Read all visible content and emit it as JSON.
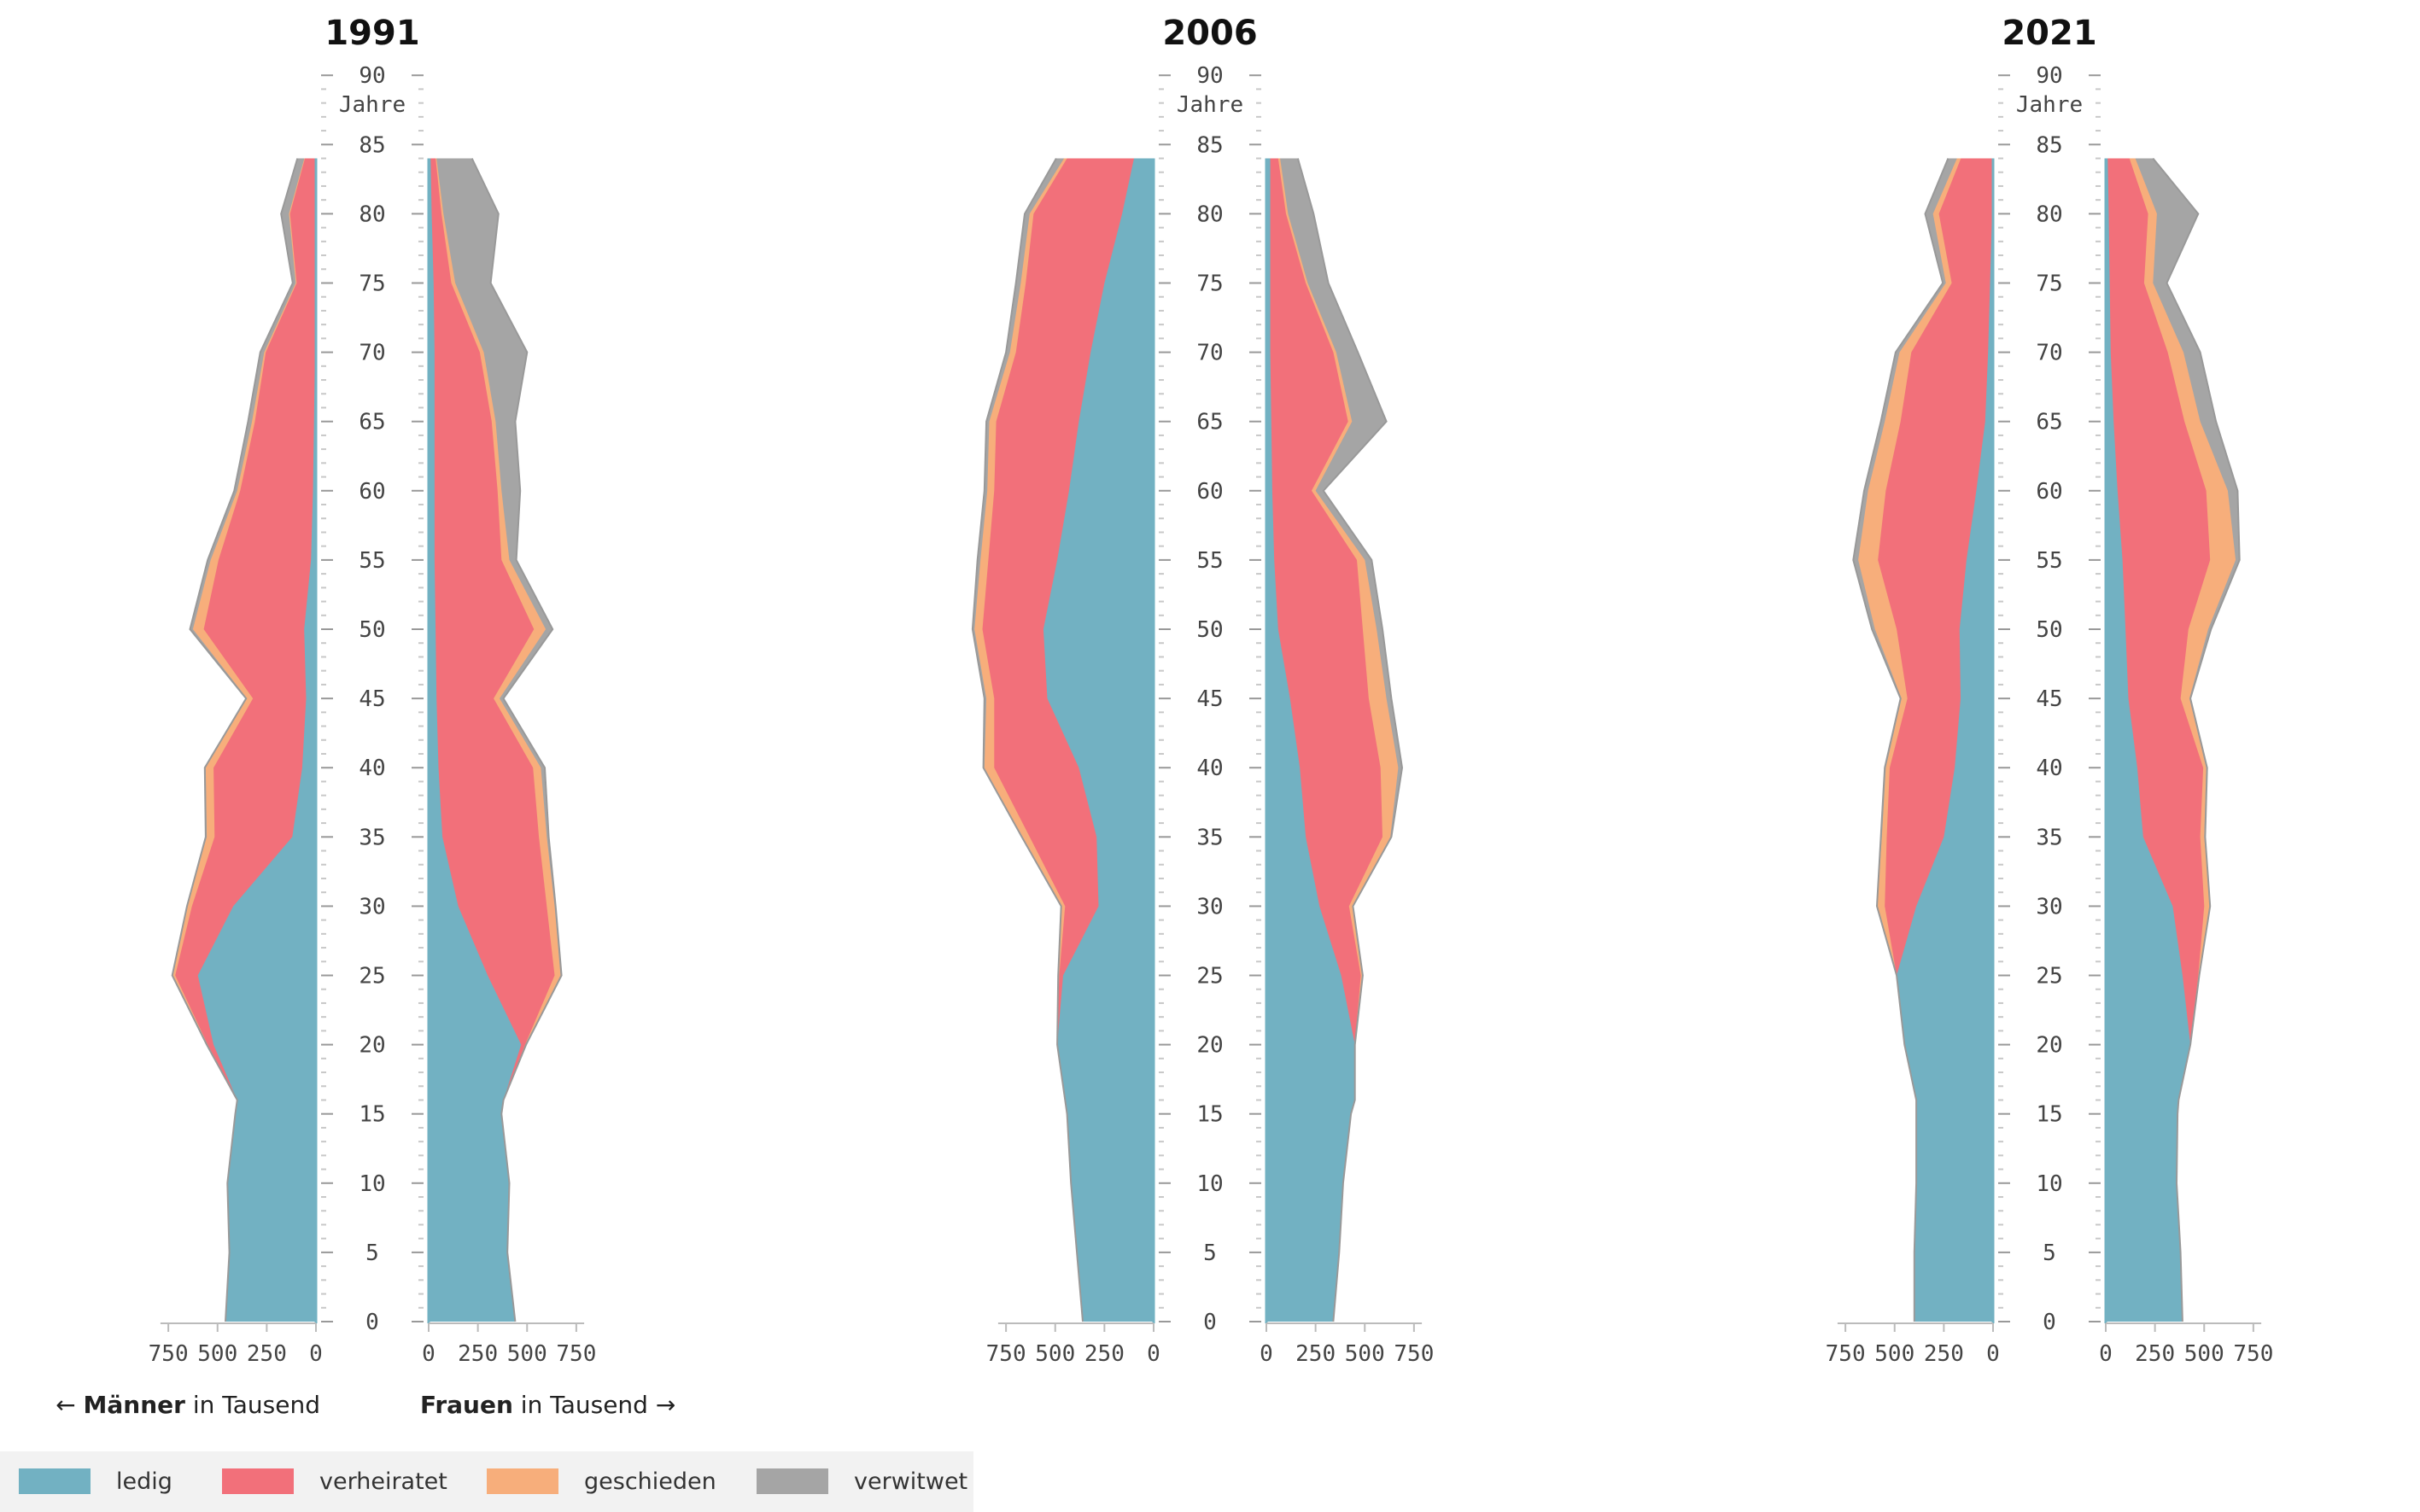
{
  "chart_data": {
    "type": "area",
    "y_axis": {
      "unit_label": "Jahre",
      "range": [
        0,
        90
      ],
      "ticks": [
        "0",
        "5",
        "10",
        "15",
        "20",
        "25",
        "30",
        "35",
        "40",
        "45",
        "50",
        "55",
        "60",
        "65",
        "70",
        "75",
        "80",
        "85",
        "90"
      ]
    },
    "x_axis": {
      "range": [
        0,
        750
      ],
      "ticks": [
        "0",
        "250",
        "500",
        "750"
      ],
      "left_caption_arrow": "←",
      "left_caption_strong": "Männer",
      "left_caption_rest": " in Tausend",
      "right_caption_strong": "Frauen",
      "right_caption_rest": " in Tausend",
      "right_caption_arrow": "→"
    },
    "legend": [
      {
        "key": "ledig",
        "label": "ledig",
        "color": "#72b1c2"
      },
      {
        "key": "verheiratet",
        "label": "verheiratet",
        "color": "#f2707a"
      },
      {
        "key": "geschieden",
        "label": "geschieden",
        "color": "#f7ae7b"
      },
      {
        "key": "verwitwet",
        "label": "verwitwet",
        "color": "#a5a5a5"
      }
    ],
    "ages": [
      0,
      5,
      10,
      15,
      16,
      20,
      25,
      30,
      35,
      40,
      45,
      50,
      55,
      60,
      65,
      70,
      75,
      80,
      84
    ],
    "panels": [
      {
        "year": "1991",
        "men": {
          "ledig": [
            460,
            440,
            450,
            410,
            400,
            520,
            600,
            420,
            120,
            70,
            50,
            60,
            25,
            15,
            10,
            5,
            3,
            2,
            1
          ],
          "verheiratet": [
            0,
            0,
            0,
            0,
            0,
            30,
            115,
            210,
            395,
            450,
            270,
            510,
            470,
            370,
            300,
            250,
            95,
            130,
            55
          ],
          "geschieden": [
            0,
            0,
            0,
            0,
            0,
            5,
            15,
            25,
            40,
            40,
            30,
            55,
            40,
            15,
            15,
            8,
            5,
            5,
            3
          ],
          "verwitwet": [
            0,
            0,
            0,
            0,
            0,
            0,
            0,
            0,
            5,
            5,
            5,
            15,
            15,
            15,
            20,
            20,
            15,
            40,
            35
          ]
        },
        "women": {
          "ledig": [
            440,
            400,
            410,
            370,
            380,
            470,
            300,
            150,
            70,
            50,
            40,
            35,
            30,
            30,
            30,
            30,
            25,
            15,
            10
          ],
          "verheiratet": [
            0,
            0,
            0,
            0,
            0,
            20,
            340,
            450,
            490,
            480,
            290,
            500,
            340,
            320,
            290,
            230,
            90,
            50,
            25
          ],
          "geschieden": [
            0,
            0,
            0,
            0,
            0,
            5,
            30,
            40,
            40,
            40,
            30,
            60,
            40,
            20,
            20,
            20,
            20,
            10,
            5
          ],
          "verwitwet": [
            0,
            0,
            0,
            0,
            0,
            0,
            5,
            5,
            10,
            20,
            20,
            35,
            35,
            95,
            100,
            220,
            180,
            280,
            180
          ]
        }
      },
      {
        "year": "2006",
        "men": {
          "ledig": [
            360,
            390,
            420,
            440,
            450,
            490,
            460,
            280,
            290,
            380,
            540,
            560,
            490,
            430,
            380,
            320,
            250,
            160,
            100
          ],
          "verheiratet": [
            0,
            0,
            0,
            0,
            0,
            0,
            20,
            170,
            340,
            430,
            270,
            310,
            350,
            380,
            420,
            380,
            400,
            450,
            340
          ],
          "geschieden": [
            0,
            0,
            0,
            0,
            0,
            0,
            5,
            20,
            40,
            50,
            40,
            40,
            40,
            35,
            35,
            30,
            25,
            20,
            15
          ],
          "verwitwet": [
            0,
            0,
            0,
            0,
            0,
            0,
            0,
            0,
            0,
            5,
            10,
            10,
            15,
            15,
            15,
            20,
            25,
            25,
            40
          ]
        },
        "women": {
          "ledig": [
            340,
            370,
            390,
            430,
            450,
            450,
            380,
            270,
            200,
            170,
            120,
            60,
            40,
            30,
            25,
            20,
            20,
            20,
            20
          ],
          "verheiratet": [
            0,
            0,
            0,
            0,
            0,
            0,
            100,
            150,
            390,
            410,
            400,
            430,
            420,
            200,
            390,
            320,
            180,
            80,
            40
          ],
          "geschieden": [
            0,
            0,
            0,
            0,
            0,
            0,
            10,
            20,
            40,
            90,
            90,
            70,
            40,
            20,
            20,
            15,
            10,
            10,
            10
          ],
          "verwitwet": [
            0,
            0,
            0,
            0,
            0,
            0,
            0,
            0,
            5,
            20,
            25,
            30,
            35,
            40,
            175,
            110,
            105,
            130,
            90
          ]
        }
      },
      {
        "year": "2021",
        "men": {
          "ledig": [
            400,
            400,
            390,
            390,
            390,
            450,
            490,
            390,
            250,
            195,
            165,
            170,
            135,
            85,
            40,
            25,
            15,
            5,
            3
          ],
          "verheiratet": [
            0,
            0,
            0,
            0,
            0,
            0,
            0,
            160,
            290,
            330,
            270,
            320,
            450,
            460,
            430,
            390,
            195,
            270,
            160
          ],
          "geschieden": [
            0,
            0,
            0,
            0,
            0,
            0,
            0,
            40,
            25,
            20,
            30,
            110,
            100,
            90,
            80,
            60,
            30,
            30,
            20
          ],
          "verwitwet": [
            0,
            0,
            0,
            0,
            0,
            0,
            0,
            0,
            5,
            5,
            5,
            15,
            25,
            20,
            20,
            20,
            15,
            40,
            45
          ]
        },
        "women": {
          "ledig": [
            390,
            380,
            360,
            365,
            370,
            430,
            390,
            340,
            190,
            160,
            115,
            100,
            85,
            60,
            40,
            25,
            20,
            15,
            10
          ],
          "verheiratet": [
            0,
            0,
            0,
            0,
            0,
            0,
            80,
            160,
            290,
            335,
            265,
            320,
            445,
            450,
            360,
            290,
            175,
            200,
            110
          ],
          "geschieden": [
            0,
            0,
            0,
            0,
            0,
            0,
            5,
            30,
            20,
            15,
            45,
            100,
            130,
            110,
            80,
            80,
            45,
            45,
            30
          ],
          "verwitwet": [
            0,
            0,
            0,
            0,
            0,
            0,
            0,
            0,
            5,
            5,
            5,
            15,
            20,
            50,
            80,
            85,
            70,
            210,
            90
          ]
        }
      }
    ]
  }
}
